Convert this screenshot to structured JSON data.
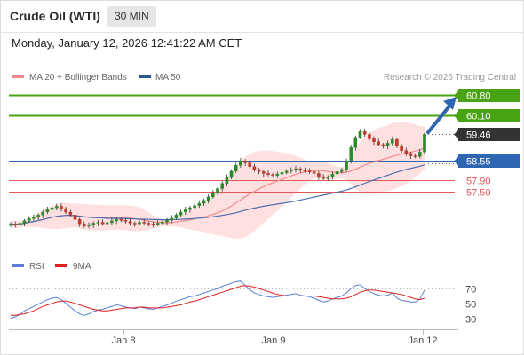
{
  "header": {
    "title": "Crude Oil (WTI)",
    "interval": "30 MIN",
    "datetime": "Monday, January 12, 2026 12:41:22 AM CET"
  },
  "legend": {
    "ma20_label": "MA 20 + Bollinger Bands",
    "ma50_label": "MA 50",
    "credit": "Research © 2026 Trading Central"
  },
  "rsi_legend": {
    "rsi_label": "RSI",
    "ma9_label": "9MA"
  },
  "colors": {
    "resistance": "#4aa312",
    "support": "#e05a5a",
    "pivot": "#2f66b2",
    "current": "#333333",
    "bollinger": "#ffd6d6",
    "ma20": "#f28a8a",
    "ma50": "#4a6eb0",
    "rsi": "#5b7fd8",
    "ma9": "#e02020",
    "candle_up": "#2a8a2a",
    "candle_down": "#c0392b"
  },
  "chart_data": [
    {
      "type": "candlestick",
      "series": [
        {
          "name": "MA 20 + Bollinger Bands"
        },
        {
          "name": "MA 50"
        }
      ],
      "x_tick_labels": [
        "Jan 8",
        "Jan 9",
        "Jan 12"
      ],
      "levels": [
        {
          "label": "60.80",
          "value": 60.8,
          "kind": "resistance"
        },
        {
          "label": "60.10",
          "value": 60.1,
          "kind": "resistance"
        },
        {
          "label": "59.46",
          "value": 59.46,
          "kind": "current"
        },
        {
          "label": "58.55",
          "value": 58.55,
          "kind": "pivot"
        },
        {
          "label": "57.90",
          "value": 57.9,
          "kind": "support"
        },
        {
          "label": "57.50",
          "value": 57.5,
          "kind": "support"
        }
      ],
      "target_arrow": {
        "from": 59.46,
        "to": 60.8
      },
      "ylim": [
        55.8,
        61.1
      ],
      "close": [
        56.4,
        56.35,
        56.42,
        56.5,
        56.58,
        56.62,
        56.7,
        56.8,
        56.88,
        56.95,
        57.0,
        56.92,
        56.8,
        56.7,
        56.55,
        56.4,
        56.32,
        56.35,
        56.42,
        56.45,
        56.4,
        56.44,
        56.5,
        56.55,
        56.52,
        56.48,
        56.42,
        56.4,
        56.45,
        56.42,
        56.4,
        56.38,
        56.42,
        56.46,
        56.52,
        56.6,
        56.7,
        56.8,
        56.88,
        56.95,
        57.02,
        57.1,
        57.2,
        57.32,
        57.45,
        57.6,
        57.78,
        57.98,
        58.2,
        58.4,
        58.55,
        58.48,
        58.35,
        58.25,
        58.18,
        58.12,
        58.08,
        58.05,
        58.1,
        58.15,
        58.2,
        58.25,
        58.28,
        58.24,
        58.2,
        58.18,
        58.12,
        58.0,
        57.95,
        58.0,
        58.1,
        58.18,
        58.25,
        58.55,
        59.0,
        59.35,
        59.55,
        59.45,
        59.3,
        59.2,
        59.1,
        59.05,
        59.15,
        59.28,
        59.05,
        58.9,
        58.8,
        58.72,
        58.7,
        58.85,
        59.46
      ]
    },
    {
      "type": "line",
      "series": [
        {
          "name": "RSI"
        },
        {
          "name": "9MA"
        }
      ],
      "y_tick_labels": [
        "70",
        "50",
        "30"
      ],
      "ylim": [
        20,
        82
      ],
      "rsi": [
        30,
        32,
        35,
        40,
        43,
        46,
        49,
        52,
        55,
        57,
        58,
        55,
        50,
        45,
        40,
        36,
        34,
        36,
        39,
        41,
        42,
        44,
        46,
        48,
        47,
        45,
        44,
        43,
        45,
        44,
        43,
        42,
        44,
        46,
        48,
        50,
        53,
        55,
        57,
        59,
        60,
        62,
        64,
        66,
        68,
        70,
        73,
        75,
        77,
        79,
        80,
        74,
        68,
        64,
        62,
        60,
        59,
        58,
        59,
        60,
        61,
        62,
        63,
        61,
        60,
        59,
        57,
        54,
        52,
        53,
        56,
        58,
        60,
        64,
        70,
        74,
        75,
        70,
        66,
        63,
        61,
        60,
        61,
        64,
        57,
        54,
        53,
        52,
        52,
        56,
        68
      ],
      "ma9": [
        34,
        34,
        35,
        36,
        38,
        40,
        43,
        46,
        48,
        50,
        52,
        53,
        53,
        52,
        50,
        48,
        46,
        44,
        42,
        41,
        40,
        40,
        41,
        42,
        43,
        44,
        44,
        44,
        45,
        45,
        44,
        44,
        44,
        44,
        45,
        46,
        47,
        48,
        50,
        52,
        53,
        55,
        57,
        59,
        61,
        63,
        65,
        67,
        69,
        71,
        73,
        74,
        73,
        72,
        70,
        68,
        66,
        64,
        62,
        61,
        60,
        60,
        60,
        60,
        60,
        60,
        60,
        59,
        58,
        57,
        56,
        56,
        56,
        57,
        59,
        62,
        65,
        67,
        68,
        68,
        67,
        66,
        65,
        64,
        63,
        62,
        60,
        58,
        56,
        55,
        57
      ]
    }
  ]
}
